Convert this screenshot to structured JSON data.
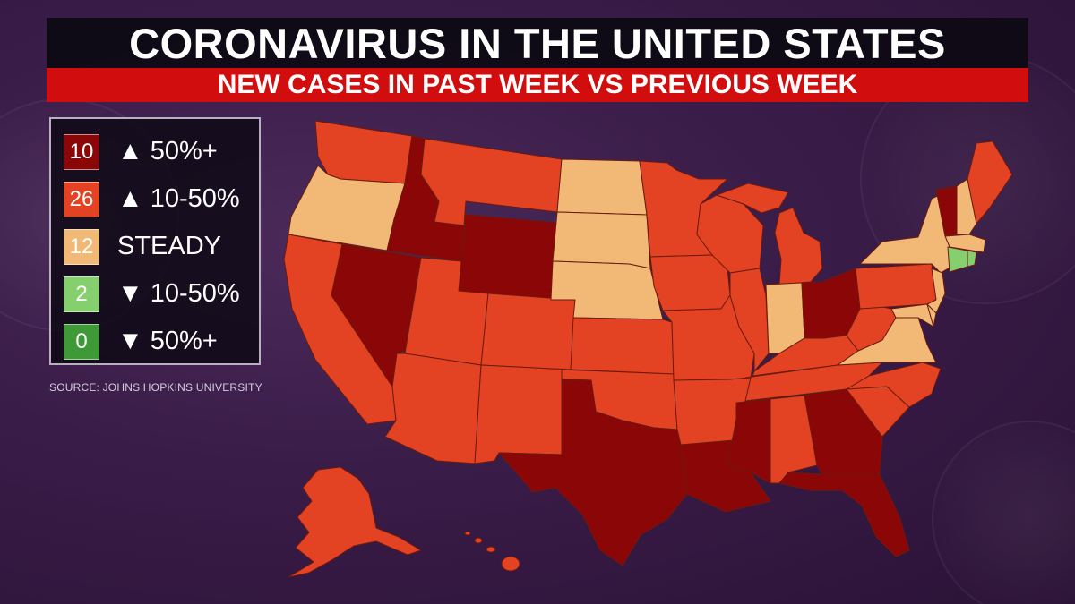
{
  "title": "CORONAVIRUS IN THE UNITED STATES",
  "subtitle": "NEW CASES IN PAST WEEK VS PREVIOUS WEEK",
  "source": "SOURCE: JOHNS HOPKINS UNIVERSITY",
  "colors": {
    "up50": "#8b0606",
    "up10_50": "#e34322",
    "steady": "#f2b876",
    "down10_50": "#86cf6e",
    "down50": "#3d9a37",
    "title_bg": "#0c0a12",
    "subtitle_bg": "#d10d0d"
  },
  "legend": [
    {
      "count": "10",
      "label": "▲ 50%+",
      "color": "#8b0606"
    },
    {
      "count": "26",
      "label": "▲ 10-50%",
      "color": "#e34322"
    },
    {
      "count": "12",
      "label": "STEADY",
      "color": "#f2b876"
    },
    {
      "count": "2",
      "label": "▼ 10-50%",
      "color": "#86cf6e"
    },
    {
      "count": "0",
      "label": "▼ 50%+",
      "color": "#3d9a37"
    }
  ]
}
